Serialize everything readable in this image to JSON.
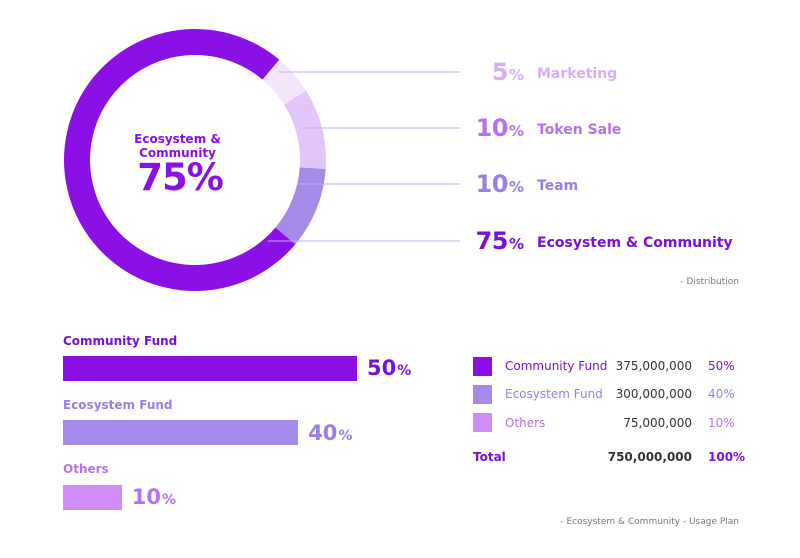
{
  "donut": {
    "center_title": "Ecosystem & Community",
    "center_value": "75%"
  },
  "legend": [
    {
      "num": "5",
      "suffix": "%",
      "label": "Marketing",
      "color": "#f3e6fc",
      "num_color": "#d9aef9",
      "label_color": "#d9aef9"
    },
    {
      "num": "10",
      "suffix": "%",
      "label": "Token Sale",
      "color": "#e2c6fb",
      "num_color": "#b870ee",
      "label_color": "#b870ee"
    },
    {
      "num": "10",
      "suffix": "%",
      "label": "Team",
      "color": "#a58aea",
      "num_color": "#9a7de6",
      "label_color": "#9a7de6"
    },
    {
      "num": "75",
      "suffix": "%",
      "label": "Ecosystem & Community",
      "color": "#8a10e6",
      "num_color": "#7a0fd6",
      "label_color": "#7a0fd6"
    }
  ],
  "captions": {
    "distribution": "- Distribution",
    "usage_plan": "- Ecosystem & Community - Usage Plan"
  },
  "funds": [
    {
      "label": "Community Fund",
      "num": "50",
      "suffix": "%",
      "color": "#8a10e6",
      "label_color": "#7a0fd6"
    },
    {
      "label": "Ecosystem Fund",
      "num": "40",
      "suffix": "%",
      "color": "#a58aea",
      "label_color": "#9a7de6"
    },
    {
      "label": "Others",
      "num": "10",
      "suffix": "%",
      "color": "#cf8cf6",
      "label_color": "#b870ee"
    }
  ],
  "table": {
    "rows": [
      {
        "name": "Community Fund",
        "amount": "375,000,000",
        "pct": "50%",
        "color": "#8a10e6",
        "text_color": "#7a0fd6"
      },
      {
        "name": "Ecosystem Fund",
        "amount": "300,000,000",
        "pct": "40%",
        "color": "#a58aea",
        "text_color": "#9a7de6"
      },
      {
        "name": "Others",
        "amount": "75,000,000",
        "pct": "10%",
        "color": "#cf8cf6",
        "text_color": "#b870ee"
      }
    ],
    "total": {
      "name": "Total",
      "amount": "750,000,000",
      "pct": "100%"
    }
  },
  "chart_data": [
    {
      "type": "pie",
      "categories": [
        "Marketing",
        "Token Sale",
        "Team",
        "Ecosystem & Community"
      ],
      "values": [
        5,
        10,
        10,
        75
      ],
      "title": "Distribution"
    },
    {
      "type": "bar",
      "categories": [
        "Community Fund",
        "Ecosystem Fund",
        "Others"
      ],
      "values": [
        50,
        40,
        10
      ],
      "amounts": [
        375000000,
        300000000,
        75000000
      ],
      "total": 750000000,
      "title": "Ecosystem & Community - Usage Plan"
    }
  ]
}
